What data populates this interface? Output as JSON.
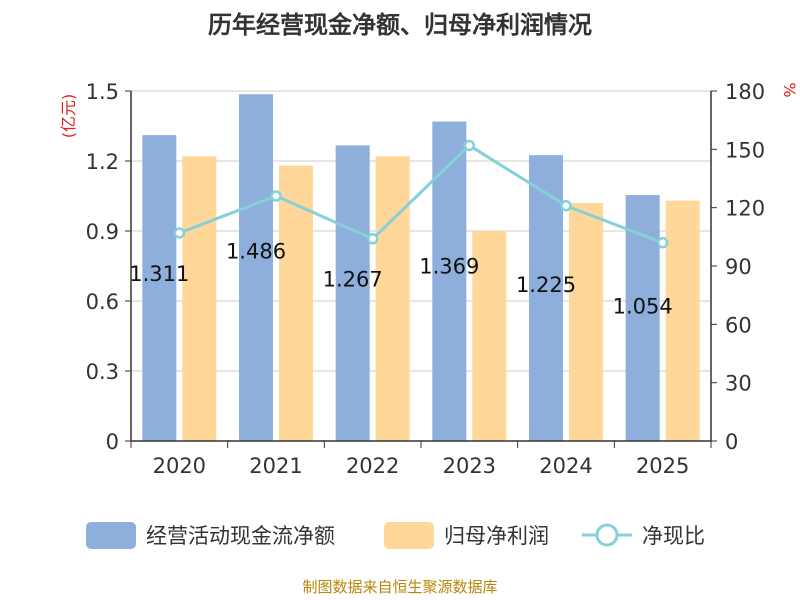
{
  "chart_data": {
    "type": "bar",
    "title": "历年经营现金净额、归母净利润情况",
    "categories": [
      "2020",
      "2021",
      "2022",
      "2023",
      "2024",
      "2025"
    ],
    "series": [
      {
        "name": "经营活动现金流净额",
        "kind": "bar",
        "axis": "left",
        "color": "#8eaedc",
        "values": [
          1.311,
          1.486,
          1.267,
          1.369,
          1.225,
          1.054
        ],
        "labels": [
          "1.311",
          "1.486",
          "1.267",
          "1.369",
          "1.225",
          "1.054"
        ]
      },
      {
        "name": "归母净利润",
        "kind": "bar",
        "axis": "left",
        "color": "#ffd899",
        "values": [
          1.22,
          1.18,
          1.22,
          0.9,
          1.02,
          1.03
        ]
      },
      {
        "name": "净现比",
        "kind": "line",
        "axis": "right",
        "color": "#86d0d8",
        "values": [
          107,
          126,
          104,
          152,
          121,
          102
        ]
      }
    ],
    "y_left": {
      "unit": "(亿元)",
      "min": 0,
      "max": 1.5,
      "ticks": [
        "0",
        "0.3",
        "0.6",
        "0.9",
        "1.2",
        "1.5"
      ]
    },
    "y_right": {
      "unit": "%",
      "min": 0,
      "max": 180,
      "ticks": [
        "0",
        "30",
        "60",
        "90",
        "120",
        "150",
        "180"
      ]
    },
    "grid": true,
    "legend_position": "bottom",
    "source": "制图数据来自恒生聚源数据库"
  }
}
